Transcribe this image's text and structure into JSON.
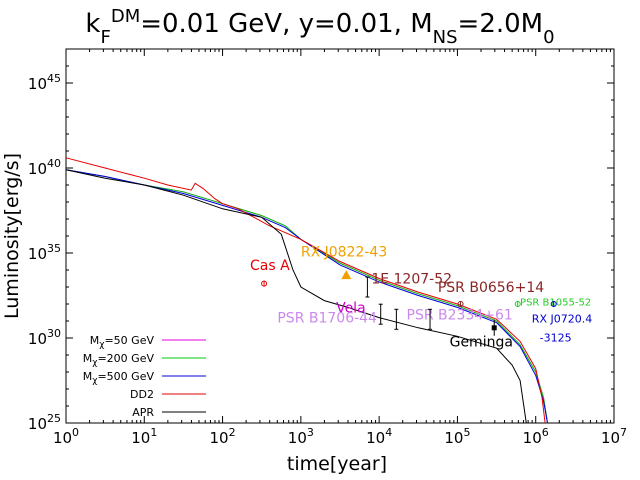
{
  "chart_data": {
    "type": "line",
    "title": {
      "base": "k",
      "sub1": "F",
      "sup1": "DM",
      "mid": "=0.01 GeV, y=0.01, M",
      "sub2": "NS",
      "end": "=2.0M",
      "sub3": "0"
    },
    "xlabel": "time[year]",
    "ylabel": "Luminosity[erg/s]",
    "xscale": "log",
    "yscale": "log",
    "xlim_exp": [
      0,
      7
    ],
    "ylim_exp": [
      25,
      47
    ],
    "x_ticks": [
      {
        "exp": 0,
        "base": "10",
        "sup": "0"
      },
      {
        "exp": 1,
        "base": "10",
        "sup": "1"
      },
      {
        "exp": 2,
        "base": "10",
        "sup": "2"
      },
      {
        "exp": 3,
        "base": "10",
        "sup": "3"
      },
      {
        "exp": 4,
        "base": "10",
        "sup": "4"
      },
      {
        "exp": 5,
        "base": "10",
        "sup": "5"
      },
      {
        "exp": 6,
        "base": "10",
        "sup": "6"
      },
      {
        "exp": 7,
        "base": "10",
        "sup": "7"
      }
    ],
    "y_ticks": [
      {
        "exp": 25,
        "base": "10",
        "sup": "25"
      },
      {
        "exp": 30,
        "base": "10",
        "sup": "30"
      },
      {
        "exp": 35,
        "base": "10",
        "sup": "35"
      },
      {
        "exp": 40,
        "base": "10",
        "sup": "40"
      },
      {
        "exp": 45,
        "base": "10",
        "sup": "45"
      }
    ],
    "series": [
      {
        "name": "M_chi=50 GeV",
        "label_pre": "M",
        "label_sub": "χ",
        "label_post": "=50 GeV",
        "color": "#e600e6",
        "width": 1,
        "points": [
          [
            0,
            39.9
          ],
          [
            0.5,
            39.5
          ],
          [
            1,
            39.0
          ],
          [
            1.5,
            38.6
          ],
          [
            2,
            37.9
          ],
          [
            2.5,
            37.2
          ],
          [
            2.8,
            36.6
          ],
          [
            3,
            35.8
          ],
          [
            3.5,
            34.4
          ],
          [
            4,
            33.4
          ],
          [
            4.5,
            32.6
          ],
          [
            5,
            31.9
          ],
          [
            5.5,
            31.0
          ],
          [
            5.8,
            29.6
          ],
          [
            6.0,
            28.0
          ],
          [
            6.1,
            26.5
          ],
          [
            6.15,
            25.0
          ]
        ]
      },
      {
        "name": "M_chi=200 GeV",
        "label_pre": "M",
        "label_sub": "χ",
        "label_post": "=200 GeV",
        "color": "#00cc00",
        "width": 1,
        "points": [
          [
            0,
            39.9
          ],
          [
            0.5,
            39.5
          ],
          [
            1,
            39.0
          ],
          [
            1.5,
            38.6
          ],
          [
            2,
            37.9
          ],
          [
            2.5,
            37.2
          ],
          [
            2.8,
            36.6
          ],
          [
            3,
            35.8
          ],
          [
            3.5,
            34.4
          ],
          [
            4,
            33.4
          ],
          [
            4.5,
            32.6
          ],
          [
            5,
            31.9
          ],
          [
            5.5,
            31.0
          ],
          [
            5.8,
            29.6
          ],
          [
            6.0,
            28.0
          ],
          [
            6.1,
            26.5
          ],
          [
            6.15,
            25.0
          ]
        ]
      },
      {
        "name": "M_chi=500 GeV",
        "label_pre": "M",
        "label_sub": "χ",
        "label_post": "=500 GeV",
        "color": "#0000dd",
        "width": 1,
        "points": [
          [
            0,
            39.9
          ],
          [
            0.5,
            39.5
          ],
          [
            1,
            39.0
          ],
          [
            1.5,
            38.5
          ],
          [
            2,
            37.8
          ],
          [
            2.5,
            37.1
          ],
          [
            2.8,
            36.5
          ],
          [
            3,
            35.8
          ],
          [
            3.5,
            34.3
          ],
          [
            4,
            33.3
          ],
          [
            4.5,
            32.5
          ],
          [
            5,
            31.8
          ],
          [
            5.5,
            30.9
          ],
          [
            5.8,
            29.5
          ],
          [
            6.0,
            27.8
          ],
          [
            6.1,
            26.3
          ],
          [
            6.15,
            25.0
          ]
        ]
      },
      {
        "name": "DD2",
        "label_pre": "DD2",
        "label_sub": "",
        "label_post": "",
        "color": "#e60000",
        "width": 1,
        "points": [
          [
            0,
            40.6
          ],
          [
            0.5,
            40.0
          ],
          [
            1,
            39.4
          ],
          [
            1.3,
            39.0
          ],
          [
            1.6,
            38.7
          ],
          [
            1.65,
            39.1
          ],
          [
            1.75,
            38.8
          ],
          [
            1.9,
            38.2
          ],
          [
            2,
            37.9
          ],
          [
            2.2,
            37.6
          ],
          [
            2.4,
            37.1
          ],
          [
            2.6,
            36.6
          ],
          [
            2.8,
            36.2
          ],
          [
            3,
            35.8
          ],
          [
            3.5,
            34.5
          ],
          [
            4,
            33.5
          ],
          [
            4.5,
            32.7
          ],
          [
            5,
            32.0
          ],
          [
            5.5,
            31.1
          ],
          [
            5.8,
            29.8
          ],
          [
            6.0,
            28.2
          ],
          [
            6.08,
            26.5
          ],
          [
            6.12,
            25.0
          ]
        ]
      },
      {
        "name": "APR",
        "label_pre": "APR",
        "label_sub": "",
        "label_post": "",
        "color": "#000000",
        "width": 1,
        "points": [
          [
            0,
            39.9
          ],
          [
            0.5,
            39.4
          ],
          [
            1,
            39.0
          ],
          [
            1.5,
            38.4
          ],
          [
            2,
            37.6
          ],
          [
            2.5,
            37.1
          ],
          [
            2.75,
            36.1
          ],
          [
            2.9,
            34.0
          ],
          [
            3.0,
            33.0
          ],
          [
            3.3,
            32.2
          ],
          [
            3.6,
            31.8
          ],
          [
            4,
            31.2
          ],
          [
            4.5,
            30.6
          ],
          [
            5,
            30.1
          ],
          [
            5.5,
            29.4
          ],
          [
            5.7,
            28.4
          ],
          [
            5.8,
            27.5
          ],
          [
            5.88,
            25.0
          ]
        ]
      }
    ],
    "annotations": [
      {
        "label": "Cas A",
        "color": "#e60000",
        "size": 14,
        "tx": 2.35,
        "ty": 34.0,
        "marker": "circle",
        "mx": 2.53,
        "my": 33.2
      },
      {
        "label": "RX J0822-43",
        "color": "#f0a000",
        "size": 14,
        "tx": 3.0,
        "ty": 34.8,
        "marker": "triangle",
        "mx": 3.58,
        "my": 33.7
      },
      {
        "label": "1E 1207-52",
        "color": "#8b2525",
        "size": 14,
        "tx": 3.9,
        "ty": 33.2,
        "marker": "errbar",
        "mx": 3.85,
        "my": 33.0
      },
      {
        "label": "PSR B0656+14",
        "color": "#8b2525",
        "size": 14,
        "tx": 4.75,
        "ty": 32.7,
        "marker": "circle",
        "mx": 5.04,
        "my": 32.0
      },
      {
        "label": "Vela",
        "color": "#cc00cc",
        "size": 14,
        "tx": 3.45,
        "ty": 31.5,
        "marker": "errbar",
        "mx": 4.02,
        "my": 31.4
      },
      {
        "label": "PSR B1055-52",
        "color": "#22cc22",
        "size": 10,
        "tx": 5.8,
        "ty": 31.9,
        "marker": "circle",
        "mx": 5.77,
        "my": 32.0
      },
      {
        "label": "PSR B1706-44",
        "color": "#cc88ee",
        "size": 14,
        "tx": 2.7,
        "ty": 30.9,
        "marker": "errbar",
        "mx": 4.22,
        "my": 31.1
      },
      {
        "label": "PSR B2334+61",
        "color": "#cc88ee",
        "size": 14,
        "tx": 4.35,
        "ty": 31.1,
        "marker": "errbar",
        "mx": 4.65,
        "my": 31.1
      },
      {
        "label": "RX J0720.4",
        "color": "#0000cc",
        "size": 11,
        "tx": 5.95,
        "ty": 30.9,
        "marker": "circle",
        "mx": 6.23,
        "my": 32.0
      },
      {
        "label": "-3125",
        "color": "#0000cc",
        "size": 11,
        "tx": 6.05,
        "ty": 29.8,
        "marker": "none",
        "mx": 0,
        "my": 0
      },
      {
        "label": "Geminga",
        "color": "#000000",
        "size": 14,
        "tx": 4.9,
        "ty": 29.5,
        "marker": "square",
        "mx": 5.47,
        "my": 30.6
      }
    ],
    "legend_position": "bottom-left"
  }
}
